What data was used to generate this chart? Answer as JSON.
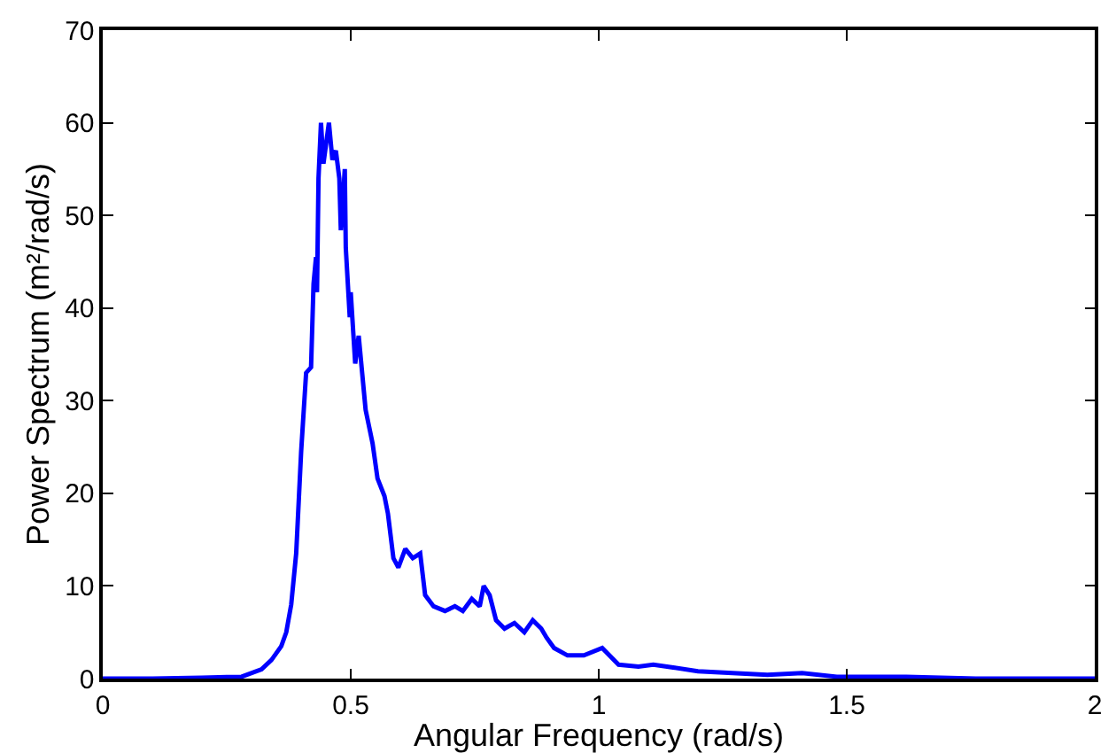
{
  "chart_data": {
    "type": "line",
    "xlabel": "Angular Frequency (rad/s)",
    "ylabel": "Power Spectrum (m²/rad/s)",
    "x": [
      0,
      0.1,
      0.2,
      0.28,
      0.32,
      0.34,
      0.36,
      0.37,
      0.38,
      0.39,
      0.4,
      0.41,
      0.42,
      0.425,
      0.43,
      0.432,
      0.435,
      0.44,
      0.445,
      0.456,
      0.463,
      0.47,
      0.477,
      0.48,
      0.488,
      0.49,
      0.498,
      0.5,
      0.509,
      0.516,
      0.523,
      0.53,
      0.544,
      0.554,
      0.568,
      0.575,
      0.586,
      0.596,
      0.61,
      0.625,
      0.64,
      0.65,
      0.667,
      0.69,
      0.71,
      0.726,
      0.744,
      0.76,
      0.768,
      0.78,
      0.793,
      0.81,
      0.83,
      0.85,
      0.867,
      0.884,
      0.895,
      0.91,
      0.937,
      0.97,
      1.007,
      1.04,
      1.08,
      1.11,
      1.15,
      1.2,
      1.27,
      1.34,
      1.41,
      1.48,
      1.55,
      1.62,
      1.76,
      2
    ],
    "series": [
      {
        "color": "#0000ff",
        "values": [
          0,
          0,
          0.1,
          0.2,
          1,
          2,
          3.5,
          5,
          8,
          13.5,
          24.5,
          33,
          33.6,
          42.6,
          45.5,
          41.7,
          54,
          60,
          55.6,
          60,
          56,
          57,
          54,
          48.4,
          55,
          46.5,
          39,
          41.7,
          34,
          37,
          33,
          29,
          25.4,
          21.6,
          19.7,
          17.8,
          13,
          12,
          14,
          13,
          13.5,
          9,
          7.8,
          7.3,
          7.8,
          7.3,
          8.6,
          7.8,
          10,
          9,
          6.3,
          5.4,
          6,
          5,
          6.3,
          5.4,
          4.4,
          3.3,
          2.5,
          2.5,
          3.3,
          1.5,
          1.3,
          1.5,
          1.2,
          0.8,
          0.6,
          0.4,
          0.6,
          0.2,
          0.2,
          0.2,
          0,
          0
        ]
      }
    ],
    "xlim": [
      0,
      2
    ],
    "xticks": [
      0,
      0.5,
      1,
      1.5,
      2
    ],
    "ylim": [
      0,
      70
    ],
    "yticks": [
      0,
      10,
      20,
      30,
      40,
      50,
      60,
      70
    ],
    "grid": false,
    "line_style": "solid",
    "marker": "none"
  }
}
